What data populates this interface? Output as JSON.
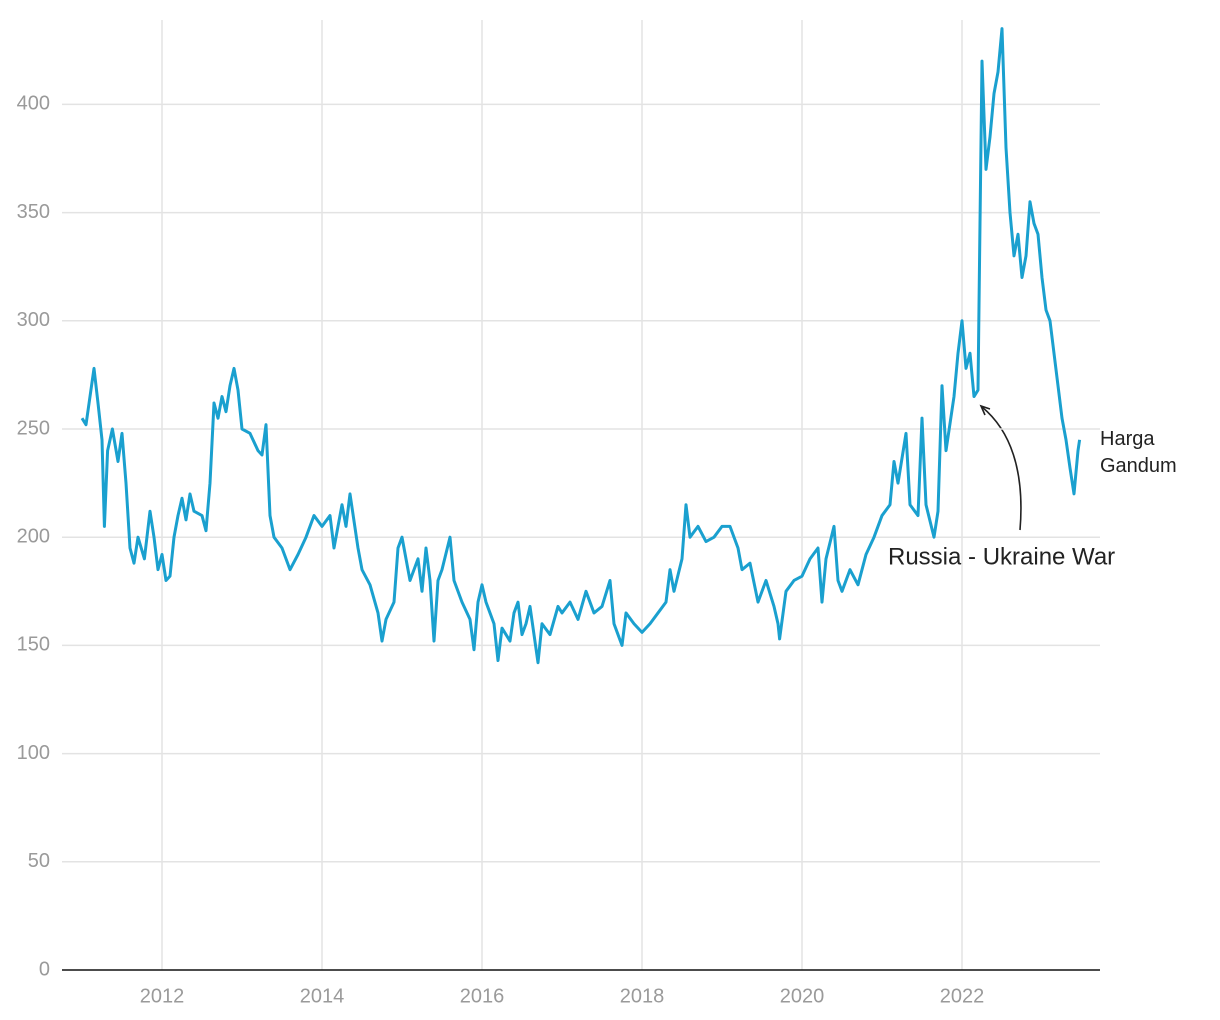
{
  "chart_data": {
    "type": "line",
    "annotation": "Russia - Ukraine War",
    "x": [
      2011.0,
      2011.05,
      2011.1,
      2011.15,
      2011.2,
      2011.25,
      2011.28,
      2011.32,
      2011.38,
      2011.45,
      2011.5,
      2011.55,
      2011.6,
      2011.65,
      2011.7,
      2011.78,
      2011.85,
      2011.9,
      2011.95,
      2012.0,
      2012.05,
      2012.1,
      2012.15,
      2012.2,
      2012.25,
      2012.3,
      2012.35,
      2012.4,
      2012.5,
      2012.55,
      2012.6,
      2012.65,
      2012.7,
      2012.75,
      2012.8,
      2012.85,
      2012.9,
      2012.95,
      2013.0,
      2013.1,
      2013.2,
      2013.25,
      2013.3,
      2013.35,
      2013.4,
      2013.5,
      2013.6,
      2013.7,
      2013.8,
      2013.9,
      2014.0,
      2014.1,
      2014.15,
      2014.25,
      2014.3,
      2014.35,
      2014.45,
      2014.5,
      2014.6,
      2014.7,
      2014.75,
      2014.8,
      2014.9,
      2014.95,
      2015.0,
      2015.1,
      2015.2,
      2015.25,
      2015.3,
      2015.35,
      2015.4,
      2015.45,
      2015.5,
      2015.6,
      2015.65,
      2015.75,
      2015.85,
      2015.9,
      2015.95,
      2016.0,
      2016.05,
      2016.1,
      2016.15,
      2016.2,
      2016.25,
      2016.35,
      2016.4,
      2016.45,
      2016.5,
      2016.55,
      2016.6,
      2016.7,
      2016.75,
      2016.85,
      2016.95,
      2017.0,
      2017.1,
      2017.2,
      2017.3,
      2017.4,
      2017.5,
      2017.6,
      2017.65,
      2017.7,
      2017.75,
      2017.8,
      2017.9,
      2018.0,
      2018.1,
      2018.2,
      2018.3,
      2018.35,
      2018.4,
      2018.5,
      2018.55,
      2018.6,
      2018.7,
      2018.8,
      2018.9,
      2019.0,
      2019.1,
      2019.2,
      2019.25,
      2019.35,
      2019.45,
      2019.55,
      2019.65,
      2019.7,
      2019.72,
      2019.8,
      2019.9,
      2020.0,
      2020.1,
      2020.2,
      2020.25,
      2020.3,
      2020.4,
      2020.45,
      2020.5,
      2020.6,
      2020.7,
      2020.8,
      2020.9,
      2021.0,
      2021.1,
      2021.15,
      2021.2,
      2021.3,
      2021.35,
      2021.45,
      2021.5,
      2021.55,
      2021.65,
      2021.7,
      2021.75,
      2021.8,
      2021.9,
      2021.95,
      2022.0,
      2022.05,
      2022.1,
      2022.15,
      2022.2,
      2022.22,
      2022.25,
      2022.3,
      2022.35,
      2022.4,
      2022.45,
      2022.5,
      2022.55,
      2022.6,
      2022.65,
      2022.7,
      2022.75,
      2022.8,
      2022.85,
      2022.9,
      2022.95,
      2023.0,
      2023.05,
      2023.1,
      2023.15,
      2023.2,
      2023.25,
      2023.3,
      2023.35,
      2023.4,
      2023.45,
      2023.47
    ],
    "series": [
      {
        "name": "Harga Gandum",
        "color": "#1aa0cf",
        "values": [
          255,
          252,
          265,
          278,
          262,
          245,
          205,
          240,
          250,
          235,
          248,
          225,
          195,
          188,
          200,
          190,
          212,
          200,
          185,
          192,
          180,
          182,
          200,
          210,
          218,
          208,
          220,
          212,
          210,
          203,
          225,
          262,
          255,
          265,
          258,
          270,
          278,
          268,
          250,
          248,
          240,
          238,
          252,
          210,
          200,
          195,
          185,
          192,
          200,
          210,
          205,
          210,
          195,
          215,
          205,
          220,
          195,
          185,
          178,
          165,
          152,
          162,
          170,
          195,
          200,
          180,
          190,
          175,
          195,
          180,
          152,
          180,
          185,
          200,
          180,
          170,
          162,
          148,
          170,
          178,
          170,
          165,
          160,
          143,
          158,
          152,
          165,
          170,
          155,
          160,
          168,
          142,
          160,
          155,
          168,
          165,
          170,
          162,
          175,
          165,
          168,
          180,
          160,
          155,
          150,
          165,
          160,
          156,
          160,
          165,
          170,
          185,
          175,
          190,
          215,
          200,
          205,
          198,
          200,
          205,
          205,
          195,
          185,
          188,
          170,
          180,
          168,
          160,
          153,
          175,
          180,
          182,
          190,
          195,
          170,
          190,
          205,
          180,
          175,
          185,
          178,
          192,
          200,
          210,
          215,
          235,
          225,
          248,
          215,
          210,
          255,
          215,
          200,
          212,
          270,
          240,
          265,
          285,
          300,
          278,
          285,
          265,
          268,
          330,
          420,
          370,
          385,
          405,
          415,
          435,
          380,
          350,
          330,
          340,
          320,
          330,
          355,
          345,
          340,
          320,
          305,
          300,
          285,
          270,
          255,
          245,
          232,
          220,
          240,
          245
        ]
      }
    ],
    "xlim": [
      2010.75,
      2023.725
    ],
    "xticks": [
      2012,
      2014,
      2016,
      2018,
      2020,
      2022
    ],
    "ylim": [
      0,
      439
    ],
    "yticks": [
      0,
      50,
      100,
      150,
      200,
      250,
      300,
      350,
      400
    ],
    "grid": true
  }
}
